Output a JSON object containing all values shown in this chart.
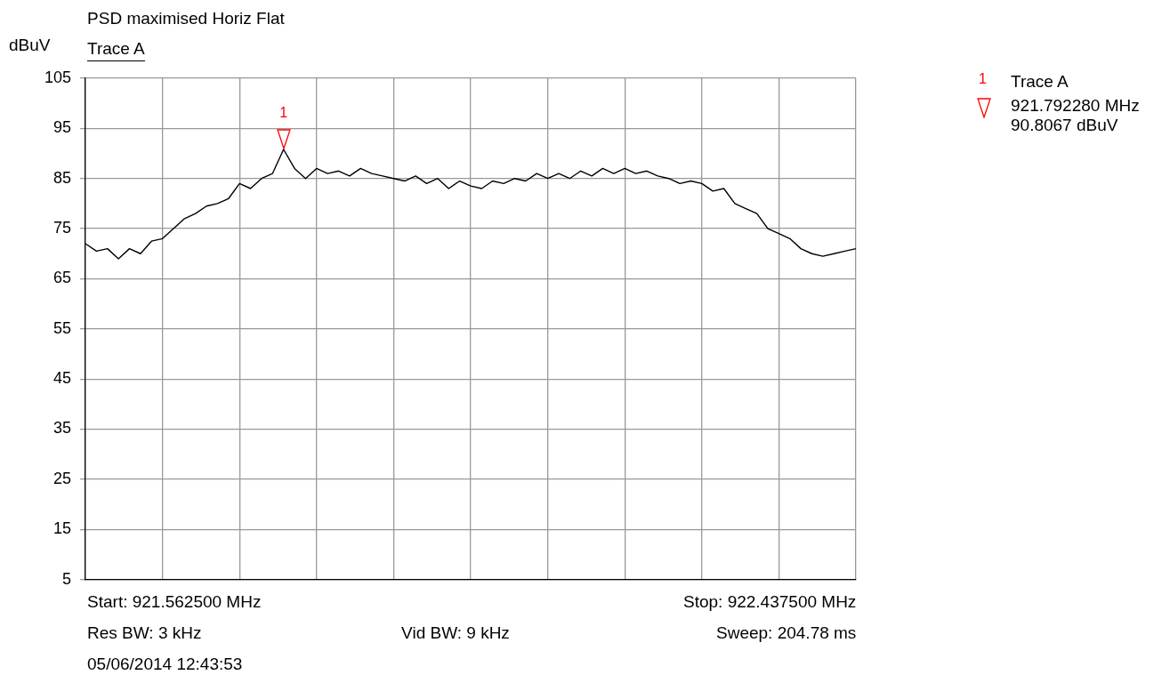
{
  "chart_data": {
    "type": "line",
    "title": "PSD maximised Horiz Flat",
    "ylabel": "dBuV",
    "categories": [
      null,
      null,
      null,
      null,
      null,
      null,
      null,
      null,
      null,
      null,
      null,
      null,
      null,
      null,
      null,
      null,
      null,
      null,
      null,
      null,
      null,
      null,
      null,
      null,
      null,
      null,
      null,
      null,
      null,
      null,
      null,
      null,
      null,
      null,
      null,
      null,
      null,
      null,
      null,
      null,
      null,
      null,
      null,
      null,
      null,
      null,
      null,
      null,
      null,
      null,
      null,
      null,
      null,
      null,
      null,
      null,
      null,
      null,
      null,
      null,
      null,
      null,
      null,
      null,
      null,
      null,
      null,
      null,
      null,
      null,
      null
    ],
    "ylim": [
      5,
      105
    ],
    "yticks": [
      5,
      15,
      25,
      35,
      45,
      55,
      65,
      75,
      85,
      95,
      105
    ],
    "grid": true,
    "series": [
      {
        "name": "Trace A",
        "color": "#000000",
        "values": [
          72,
          70.5,
          71,
          69,
          71,
          70,
          72.5,
          73,
          75,
          77,
          78,
          79.5,
          80,
          81,
          84,
          83,
          85,
          86,
          90.8067,
          87,
          85,
          87,
          86,
          86.5,
          85.5,
          87,
          86,
          85.5,
          85,
          84.5,
          85.5,
          84,
          85,
          83,
          84.5,
          83.5,
          83,
          84.5,
          84,
          85,
          84.5,
          86,
          85,
          86,
          85,
          86.5,
          85.5,
          87,
          86,
          87,
          86,
          86.5,
          85.5,
          85,
          84,
          84.5,
          84,
          82.5,
          83,
          80,
          79,
          78,
          75,
          74,
          73,
          71,
          70,
          69.5,
          70,
          70.5,
          71
        ]
      }
    ],
    "annotations": [
      {
        "text": "1",
        "y": 90.8067
      },
      "Trace A",
      "921.792280 MHz",
      "90.8067 dBuV",
      "Start: 921.562500 MHz",
      "Stop: 922.437500 MHz",
      "Res BW: 3 kHz",
      "Vid BW: 9 kHz",
      "Sweep: 204.78 ms",
      "05/06/2014 12:43:53"
    ]
  }
}
